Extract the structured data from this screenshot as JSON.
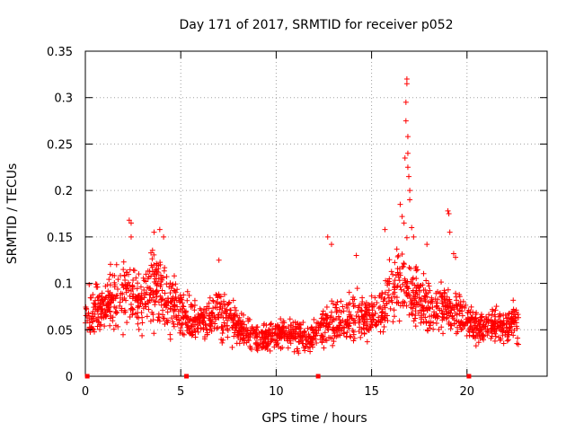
{
  "chart_data": {
    "type": "scatter",
    "title": "Day 171 of 2017, SRMTID for receiver p052",
    "xlabel": "GPS time / hours",
    "ylabel": "SRMTID / TECUs",
    "xlim": [
      0,
      24.2
    ],
    "ylim": [
      0,
      0.35
    ],
    "xticks": [
      0,
      5,
      10,
      15,
      20
    ],
    "xtick_labels": [
      "0",
      "5",
      "10",
      "15",
      "20"
    ],
    "yticks": [
      0,
      0.05,
      0.1,
      0.15,
      0.2,
      0.25,
      0.3,
      0.35
    ],
    "ytick_labels": [
      "0",
      "0.05",
      "0.1",
      "0.15",
      "0.2",
      "0.25",
      "0.3",
      "0.35"
    ],
    "grid": true,
    "marker": "plus",
    "series_color": "#ff0000",
    "axis_markers_x": [
      0.1,
      5.3,
      12.2,
      20.1
    ],
    "profile": [
      [
        0.0,
        0.07,
        0.018
      ],
      [
        0.5,
        0.068,
        0.018
      ],
      [
        1.0,
        0.075,
        0.018
      ],
      [
        1.5,
        0.085,
        0.02
      ],
      [
        2.0,
        0.095,
        0.025
      ],
      [
        2.5,
        0.085,
        0.022
      ],
      [
        3.0,
        0.08,
        0.022
      ],
      [
        3.5,
        0.095,
        0.025
      ],
      [
        4.0,
        0.09,
        0.025
      ],
      [
        4.5,
        0.08,
        0.022
      ],
      [
        5.0,
        0.07,
        0.018
      ],
      [
        5.5,
        0.06,
        0.015
      ],
      [
        6.0,
        0.06,
        0.015
      ],
      [
        6.5,
        0.062,
        0.016
      ],
      [
        7.0,
        0.068,
        0.018
      ],
      [
        7.5,
        0.062,
        0.016
      ],
      [
        8.0,
        0.052,
        0.013
      ],
      [
        8.5,
        0.045,
        0.012
      ],
      [
        9.0,
        0.04,
        0.01
      ],
      [
        9.5,
        0.04,
        0.01
      ],
      [
        10.0,
        0.045,
        0.012
      ],
      [
        10.5,
        0.048,
        0.012
      ],
      [
        11.0,
        0.045,
        0.012
      ],
      [
        11.5,
        0.042,
        0.011
      ],
      [
        12.0,
        0.045,
        0.011
      ],
      [
        12.5,
        0.055,
        0.014
      ],
      [
        13.0,
        0.06,
        0.016
      ],
      [
        13.5,
        0.055,
        0.015
      ],
      [
        14.0,
        0.06,
        0.016
      ],
      [
        14.5,
        0.065,
        0.018
      ],
      [
        15.0,
        0.062,
        0.017
      ],
      [
        15.5,
        0.07,
        0.02
      ],
      [
        16.0,
        0.085,
        0.022
      ],
      [
        16.5,
        0.1,
        0.03
      ],
      [
        17.0,
        0.09,
        0.025
      ],
      [
        17.5,
        0.08,
        0.02
      ],
      [
        18.0,
        0.075,
        0.018
      ],
      [
        18.5,
        0.07,
        0.018
      ],
      [
        19.0,
        0.075,
        0.02
      ],
      [
        19.5,
        0.07,
        0.018
      ],
      [
        20.0,
        0.06,
        0.016
      ],
      [
        20.5,
        0.055,
        0.014
      ],
      [
        21.0,
        0.052,
        0.013
      ],
      [
        21.5,
        0.055,
        0.014
      ],
      [
        22.0,
        0.052,
        0.013
      ],
      [
        22.5,
        0.06,
        0.015
      ],
      [
        22.7,
        0.06,
        0.015
      ]
    ],
    "generated_point_count": 1900,
    "outliers": [
      [
        2.3,
        0.168
      ],
      [
        2.4,
        0.165
      ],
      [
        2.4,
        0.15
      ],
      [
        3.6,
        0.155
      ],
      [
        3.9,
        0.158
      ],
      [
        4.1,
        0.15
      ],
      [
        7.0,
        0.125
      ],
      [
        12.7,
        0.15
      ],
      [
        12.9,
        0.142
      ],
      [
        14.2,
        0.13
      ],
      [
        15.7,
        0.158
      ],
      [
        16.5,
        0.185
      ],
      [
        16.6,
        0.172
      ],
      [
        16.7,
        0.165
      ],
      [
        16.75,
        0.235
      ],
      [
        16.8,
        0.275
      ],
      [
        16.8,
        0.295
      ],
      [
        16.85,
        0.32
      ],
      [
        16.85,
        0.315
      ],
      [
        16.9,
        0.258
      ],
      [
        16.9,
        0.24
      ],
      [
        16.95,
        0.215
      ],
      [
        16.9,
        0.225
      ],
      [
        17.0,
        0.2
      ],
      [
        17.0,
        0.19
      ],
      [
        17.1,
        0.16
      ],
      [
        17.2,
        0.15
      ],
      [
        17.9,
        0.142
      ],
      [
        19.0,
        0.178
      ],
      [
        19.05,
        0.175
      ],
      [
        19.1,
        0.155
      ],
      [
        19.3,
        0.132
      ],
      [
        19.4,
        0.128
      ]
    ]
  }
}
